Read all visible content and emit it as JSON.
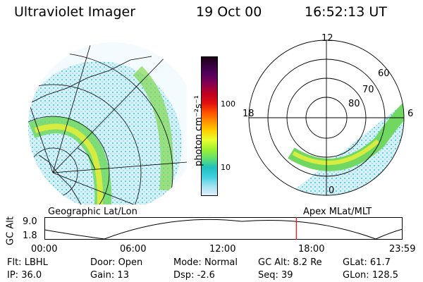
{
  "header": {
    "app_title": "Ultraviolet Imager",
    "date": "19 Oct 00",
    "time": "16:52:13 UT"
  },
  "colorbar": {
    "unit_label": "photon cm⁻²s⁻¹",
    "ticks": [
      "100",
      "10"
    ],
    "colors": [
      "#1a0014",
      "#3a0040",
      "#5a0060",
      "#8a0050",
      "#c00020",
      "#e01010",
      "#ff5000",
      "#ff9000",
      "#ffd000",
      "#e8ff30",
      "#a0f030",
      "#60e070",
      "#20c0c0",
      "#40d0e0",
      "#a0e0f0",
      "#e0f0ff"
    ]
  },
  "left_panel": {
    "caption": "Geographic Lat/Lon"
  },
  "right_panel": {
    "caption": "Apex MLat/MLT",
    "mlt_labels": [
      "12",
      "18",
      "6",
      "0"
    ],
    "lat_labels": [
      "60",
      "70",
      "80"
    ]
  },
  "timeline": {
    "axis_label": "GC Alt",
    "y_ticks": [
      "9.0",
      "1.8"
    ],
    "x_ticks": [
      "00:00",
      "06:00",
      "12:00",
      "18:00",
      "23:59"
    ],
    "marker_time": "16:52:13"
  },
  "footer": {
    "row1": [
      {
        "label": "Flt:",
        "value": "LBHL"
      },
      {
        "label": "Door:",
        "value": "Open"
      },
      {
        "label": "Mode:",
        "value": "Normal"
      },
      {
        "label": "GC Alt:",
        "value": "8.2 Re"
      },
      {
        "label": "GLat:",
        "value": "61.7"
      }
    ],
    "row2": [
      {
        "label": "IP:",
        "value": "36.0"
      },
      {
        "label": "Gain:",
        "value": "13"
      },
      {
        "label": "Dsp:",
        "value": "-2.6"
      },
      {
        "label": "Seq:",
        "value": "39"
      },
      {
        "label": "GLon:",
        "value": "128.5"
      }
    ]
  }
}
